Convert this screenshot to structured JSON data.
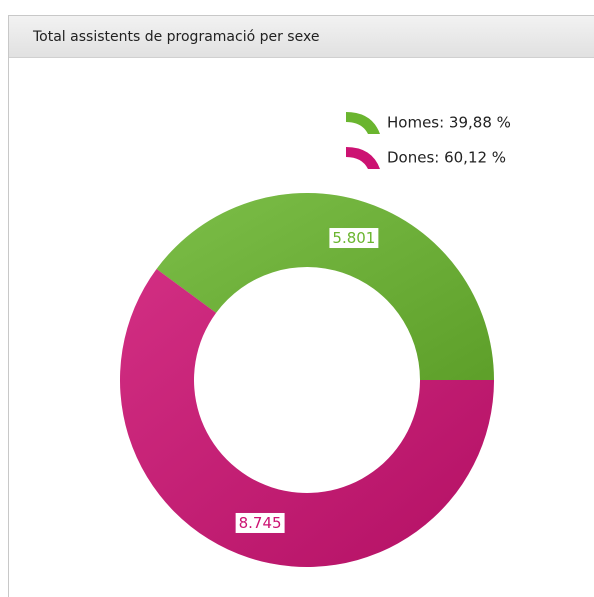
{
  "chart_data": {
    "type": "donut",
    "title": "Total assistents de programació per sexe",
    "categories": [
      "Homes",
      "Dones"
    ],
    "series": [
      {
        "name": "Homes",
        "color": "#6ab52f"
      },
      {
        "name": "Dones",
        "color": "#cc1272"
      }
    ],
    "values": [
      5801,
      8745
    ],
    "value_labels": [
      "5.801",
      "8.745"
    ],
    "legend_labels": [
      "Homes: 39,88 %",
      "Dones: 60,12 %"
    ],
    "legend": "top-right"
  }
}
